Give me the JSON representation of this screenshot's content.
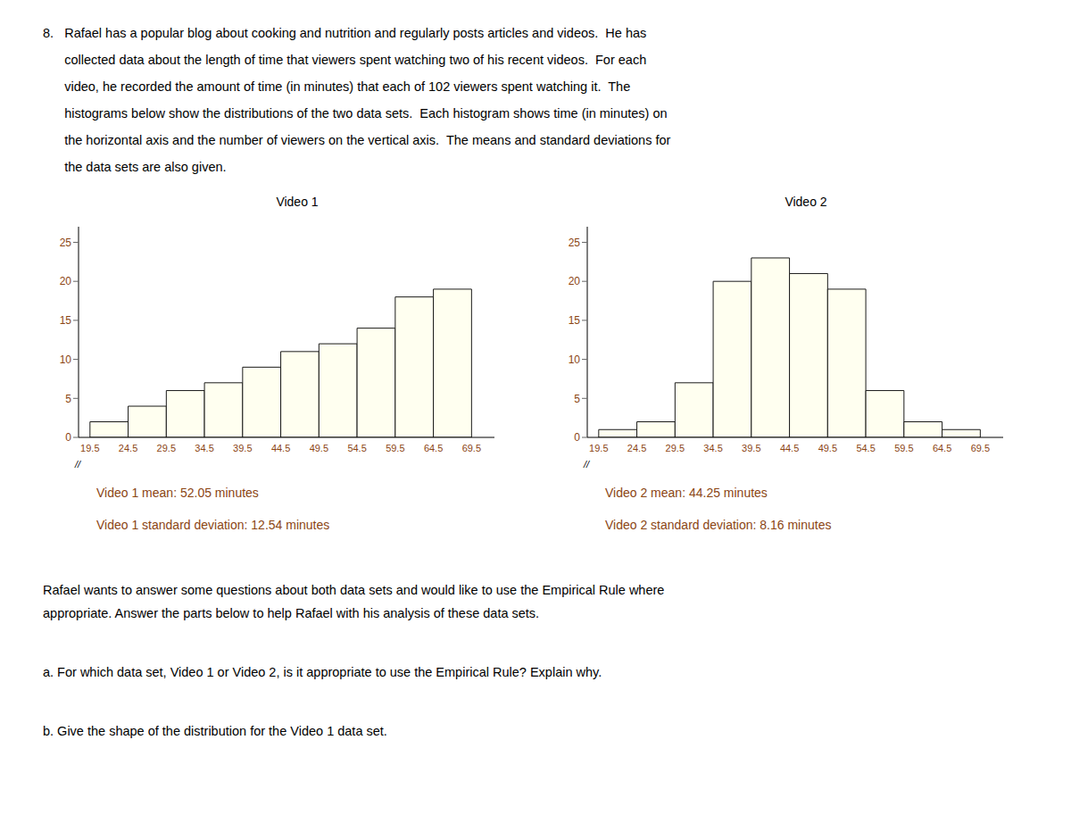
{
  "header": [
    "8.   Rafael has a popular blog about cooking and nutrition and regularly posts articles and videos.  He has",
    "      collected data about the length of time that viewers spent watching two of his recent videos.  For each",
    "      video, he recorded the amount of time (in minutes) that each of 102 viewers spent watching it.  The",
    "      histograms below show the distributions of the two data sets.  Each histogram shows time (in minutes) on",
    "      the horizontal axis and the number of viewers on the vertical axis.  The means and standard deviations for",
    "      the data sets are also given."
  ],
  "chart_data": [
    {
      "type": "histogram",
      "title": "Video 1",
      "bins": [
        19.5,
        24.5,
        29.5,
        34.5,
        39.5,
        44.5,
        49.5,
        54.5,
        59.5,
        64.5,
        69.5
      ],
      "values": [
        2,
        4,
        6,
        7,
        9,
        11,
        12,
        14,
        18,
        19
      ],
      "color": "#fffff0",
      "xlim": [
        18,
        72.5
      ],
      "xticks": [
        19.5,
        24.5,
        29.5,
        34.5,
        39.5,
        44.5,
        49.5,
        54.5,
        59.5,
        64.5,
        69.5
      ],
      "ylim": [
        0,
        27
      ],
      "yticks": [
        0,
        5,
        10,
        15,
        20,
        25
      ],
      "grid": false,
      "axis_break": "//",
      "annotations": [
        "Video 1 mean: 52.05 minutes",
        "Video 1 standard deviation: 12.54 minutes"
      ]
    },
    {
      "type": "histogram",
      "title": "Video 2",
      "bins": [
        19.5,
        24.5,
        29.5,
        34.5,
        39.5,
        44.5,
        49.5,
        54.5,
        59.5,
        64.5,
        69.5
      ],
      "values": [
        1,
        2,
        7,
        20,
        23,
        21,
        19,
        6,
        2,
        1
      ],
      "color": "#fffff0",
      "xlim": [
        18,
        72.5
      ],
      "xticks": [
        19.5,
        24.5,
        29.5,
        34.5,
        39.5,
        44.5,
        49.5,
        54.5,
        59.5,
        64.5,
        69.5
      ],
      "ylim": [
        0,
        27
      ],
      "yticks": [
        0,
        5,
        10,
        15,
        20,
        25
      ],
      "grid": false,
      "axis_break": "//",
      "annotations": [
        "Video 2 mean: 44.25 minutes",
        "Video 2 standard deviation: 8.16 minutes"
      ]
    }
  ],
  "body": [
    "Rafael wants to answer some questions about both data sets and would like to use the Empirical Rule where\nappropriate.  Answer the parts below to help Rafael with his analysis of these data sets.",
    "a.   For which data set, Video 1 or Video 2, is it appropriate to use the Empirical Rule?  Explain why.",
    "b.   Give the shape of the distribution for the Video 1 data set."
  ]
}
